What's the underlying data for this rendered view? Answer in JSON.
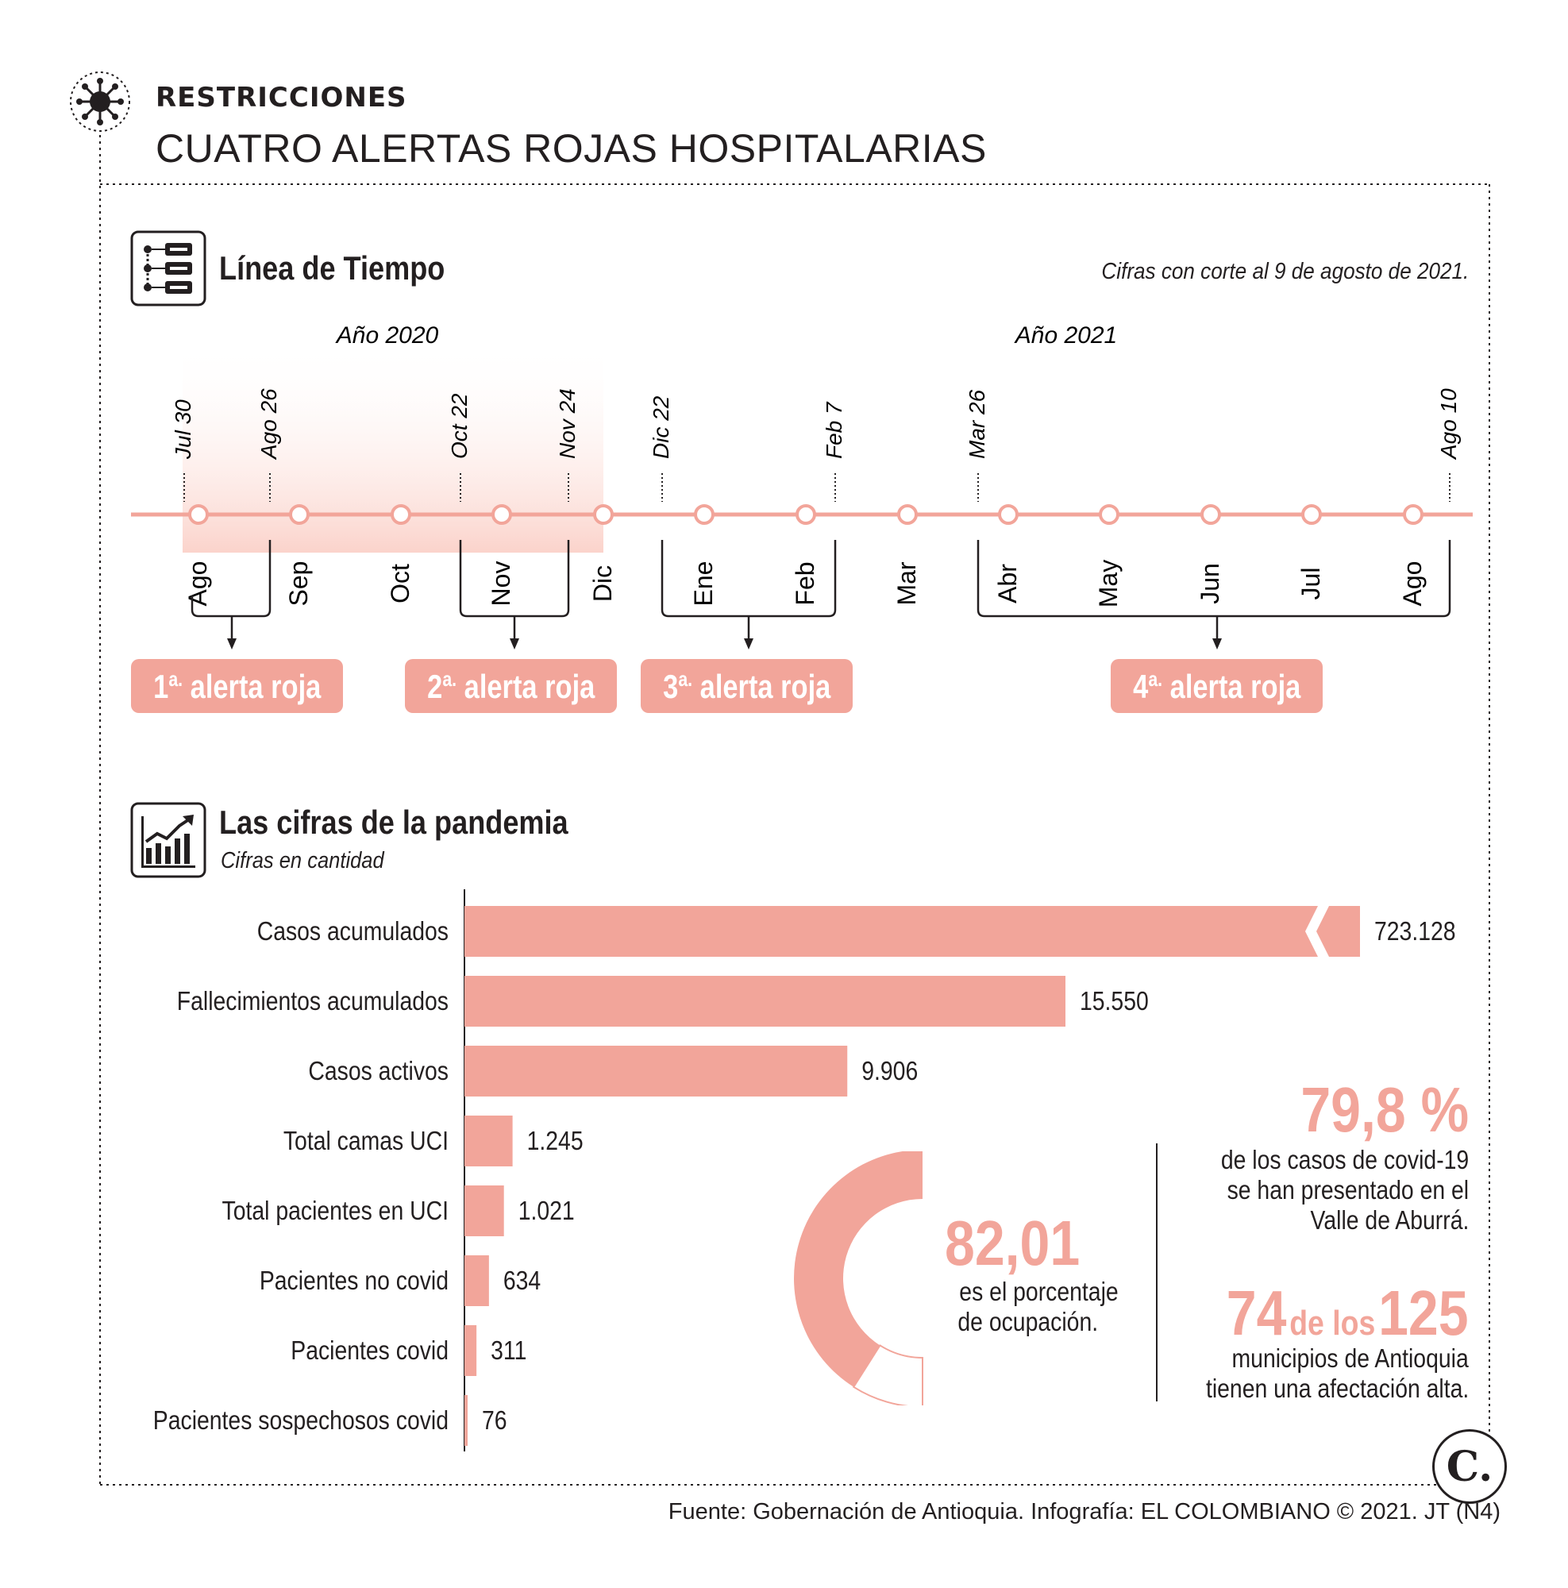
{
  "header": {
    "kicker": "RESTRICCIONES",
    "headline": "CUATRO ALERTAS ROJAS HOSPITALARIAS"
  },
  "timeline": {
    "title": "Línea de Tiempo",
    "cutoff_note": "Cifras con corte al 9 de agosto de 2021.",
    "year_labels": [
      "Año 2020",
      "Año 2021"
    ],
    "months": [
      "Ago",
      "Sep",
      "Oct",
      "Nov",
      "Dic",
      "Ene",
      "Feb",
      "Mar",
      "Abr",
      "May",
      "Jun",
      "Jul",
      "Ago"
    ],
    "dates": [
      "Jul 30",
      "Ago 26",
      "Oct 22",
      "Nov 24",
      "Dic 22",
      "Feb 7",
      "Mar 26",
      "Ago 10"
    ],
    "alerts": [
      {
        "num": "1",
        "sup": "a.",
        "text": "alerta roja"
      },
      {
        "num": "2",
        "sup": "a.",
        "text": "alerta roja"
      },
      {
        "num": "3",
        "sup": "a.",
        "text": "alerta roja"
      },
      {
        "num": "4",
        "sup": "a.",
        "text": "alerta roja"
      }
    ]
  },
  "figures": {
    "title": "Las cifras de la pandemia",
    "subtitle": "Cifras en cantidad"
  },
  "chart_data": {
    "type": "bar",
    "orientation": "horizontal",
    "title": "Las cifras de la pandemia",
    "subtitle": "Cifras en cantidad",
    "categories": [
      "Casos acumulados",
      "Fallecimientos acumulados",
      "Casos activos",
      "Total camas UCI",
      "Total pacientes en UCI",
      "Pacientes no covid",
      "Pacientes covid",
      "Pacientes sospechosos covid"
    ],
    "values": [
      723128,
      15550,
      9906,
      1245,
      1021,
      634,
      311,
      76
    ],
    "value_labels": [
      "723.128",
      "15.550",
      "9.906",
      "1.245",
      "1.021",
      "634",
      "311",
      "76"
    ],
    "axis_break_on_first_bar": true
  },
  "occupancy": {
    "value": "82,01",
    "percent": 82.01,
    "line1": "es el porcentaje",
    "line2": "de ocupación."
  },
  "stat1": {
    "value": "79,8 %",
    "lines": [
      "de los casos de covid-19",
      "se han presentado en el",
      "Valle de Aburrá."
    ]
  },
  "stat2": {
    "num1": "74",
    "mid": "de los",
    "num2": "125",
    "lines": [
      "municipios de Antioquia",
      "tienen una afectación alta."
    ]
  },
  "footer": {
    "source": "Fuente: Gobernación de Antioquia. Infografía: EL COLOMBIANO © 2021. JT (N4)",
    "logo_letter": "C."
  },
  "colors": {
    "accent": "#f2a59a",
    "shade": "#fde4df",
    "text": "#231f20"
  }
}
